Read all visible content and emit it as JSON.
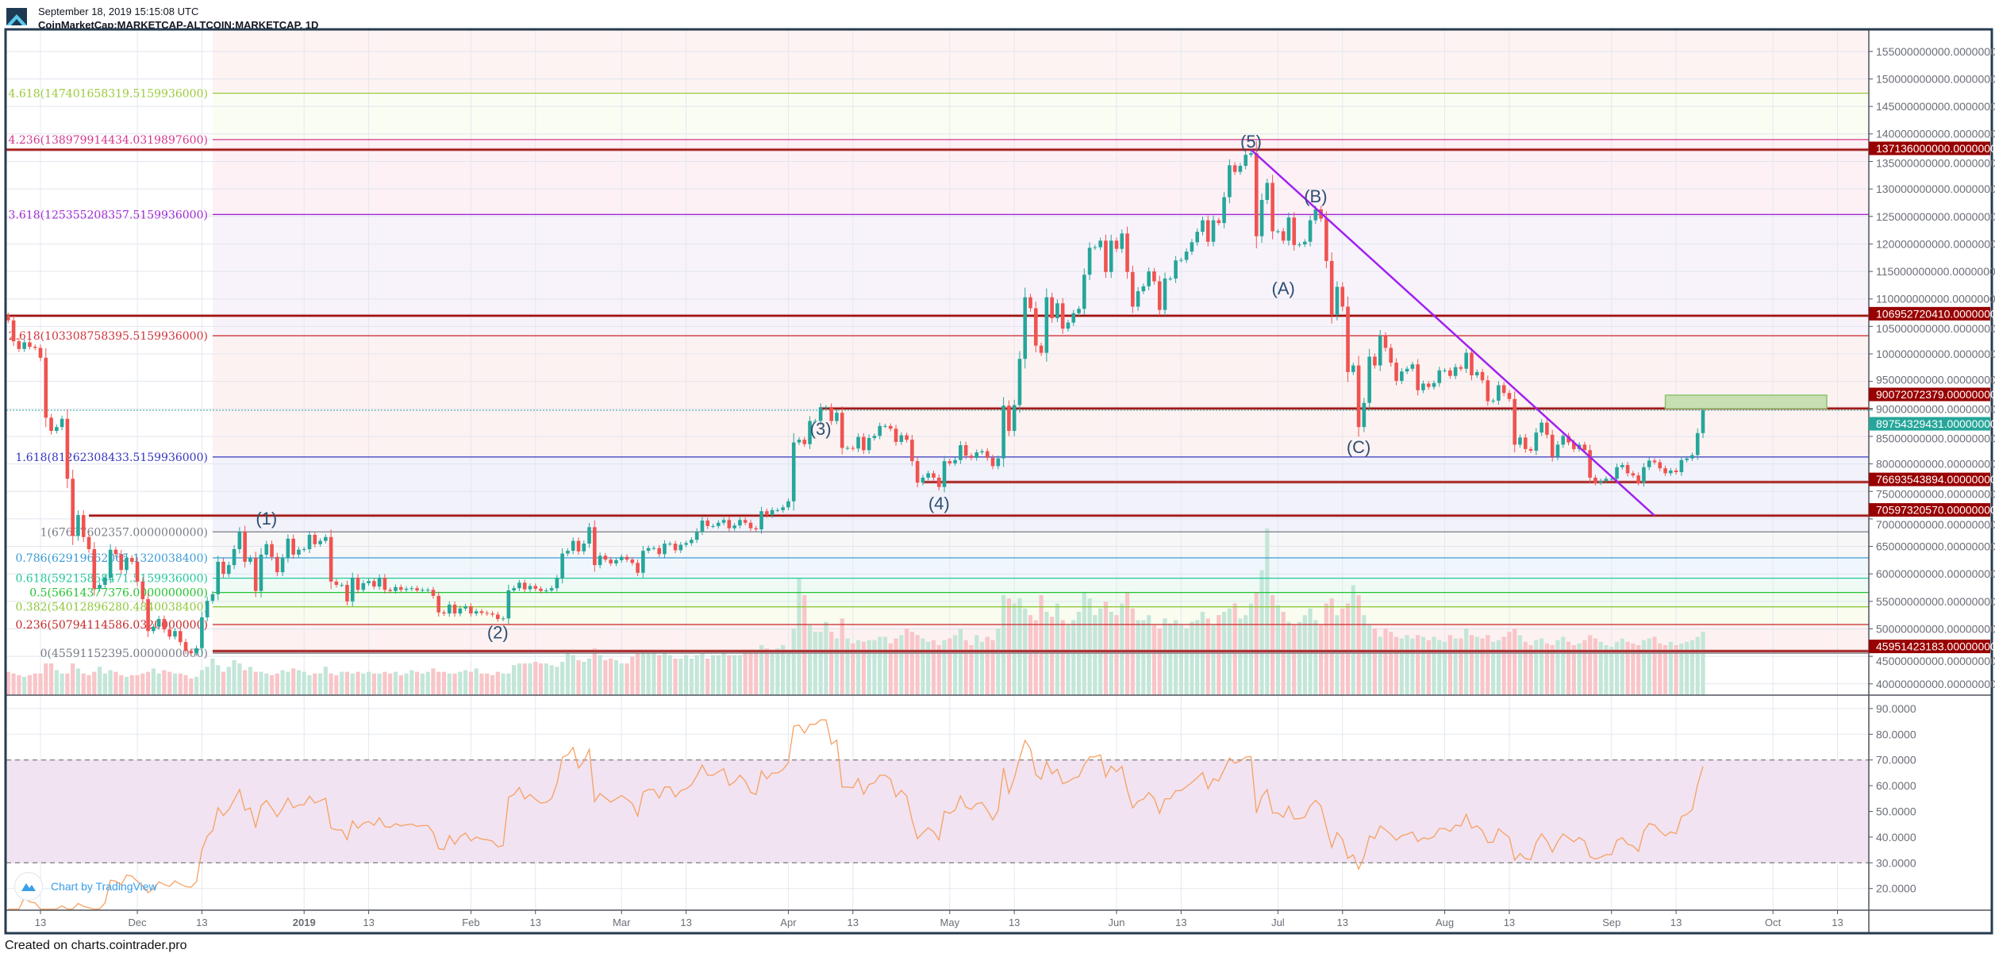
{
  "header": {
    "date": "September 18, 2019 15:15:08 UTC",
    "title": "CoinMarketCap:MARKETCAP-ALTCOIN:MARKETCAP, 1D"
  },
  "footer": {
    "created": "Created on charts.cointrader.pro"
  },
  "watermark": {
    "text": "Chart by TradingView",
    "icon": "tradingview-logo-icon"
  },
  "colors": {
    "up": "#26a69a",
    "down": "#ef5350",
    "up_volume": "#c3e6d8",
    "down_volume": "#f8c5c8",
    "level_line": "#9b0a0a",
    "level_label_bg": "#990000",
    "last_price_bg": "#26a69a",
    "trendline": "#a020f0",
    "rsi_line": "#f7a062",
    "rsi_band": "#f1e3f1",
    "wave_label": "#2c4f72",
    "target_box": "#c8dfb4",
    "target_box_border": "#8cc46c"
  },
  "chart_data": {
    "type": "candlestick",
    "symbol": "CoinMarketCap:MARKETCAP-ALTCOIN:MARKETCAP",
    "interval": "1D",
    "unit": "USD billions",
    "start_date": "2018-11-07",
    "first_open": 107.0,
    "closes": [
      106.1,
      102.3,
      100.9,
      102.1,
      101.3,
      101.1,
      99.3,
      88.4,
      86.0,
      86.7,
      88.2,
      77.3,
      66.9,
      70.7,
      66.7,
      64.5,
      57.3,
      58.0,
      59.3,
      64.4,
      63.6,
      60.7,
      62.9,
      62.2,
      58.6,
      55.4,
      49.6,
      50.4,
      51.8,
      49.9,
      48.6,
      49.6,
      47.6,
      46.0,
      45.6,
      46.5,
      52.1,
      55.1,
      56.3,
      62.2,
      60.0,
      61.6,
      64.5,
      67.7,
      62.2,
      62.9,
      56.9,
      63.5,
      65.4,
      63.1,
      60.3,
      62.9,
      66.4,
      63.5,
      64.4,
      64.5,
      67.1,
      65.4,
      66.0,
      66.7,
      58.6,
      58.0,
      58.0,
      55.0,
      59.3,
      57.1,
      58.3,
      58.7,
      57.7,
      59.3,
      57.1,
      56.9,
      57.6,
      57.1,
      57.3,
      57.4,
      57.0,
      57.1,
      57.1,
      56.0,
      53.0,
      52.8,
      54.4,
      52.8,
      53.7,
      54.1,
      52.8,
      53.2,
      52.9,
      52.8,
      52.6,
      51.8,
      51.9,
      57.0,
      57.4,
      58.4,
      57.2,
      57.8,
      57.3,
      56.9,
      57.0,
      57.4,
      59.2,
      63.7,
      64.2,
      66.0,
      64.1,
      65.5,
      68.5,
      61.6,
      63.3,
      62.6,
      61.9,
      62.5,
      63.1,
      62.6,
      62.0,
      60.2,
      64.2,
      64.7,
      64.7,
      63.6,
      65.5,
      65.5,
      64.3,
      65.3,
      65.6,
      66.2,
      67.7,
      69.7,
      68.7,
      68.7,
      69.3,
      69.8,
      68.3,
      68.8,
      69.8,
      69.3,
      68.3,
      68.1,
      71.4,
      70.7,
      71.6,
      71.6,
      72.1,
      73.2,
      83.9,
      84.4,
      83.6,
      87.8,
      87.8,
      90.3,
      90.3,
      87.8,
      89.3,
      82.9,
      82.9,
      82.8,
      84.9,
      82.5,
      84.7,
      85.1,
      86.9,
      86.9,
      86.4,
      84.0,
      85.2,
      84.4,
      80.5,
      76.6,
      77.5,
      78.3,
      77.5,
      75.8,
      80.5,
      80.1,
      80.7,
      83.4,
      81.5,
      81.1,
      82.1,
      82.3,
      81.1,
      79.6,
      81.0,
      90.6,
      86.0,
      90.7,
      99.1,
      110.3,
      108.3,
      101.5,
      100.2,
      110.3,
      106.5,
      109.2,
      104.6,
      105.7,
      107.4,
      108.2,
      114.4,
      119.3,
      119.4,
      120.6,
      114.9,
      120.6,
      119.1,
      121.9,
      114.9,
      108.6,
      111.4,
      112.3,
      115.0,
      113.2,
      108.0,
      113.7,
      113.7,
      117.0,
      117.1,
      118.6,
      120.3,
      122.2,
      124.3,
      120.4,
      124.3,
      123.8,
      128.5,
      134.3,
      133.1,
      134.2,
      136.2,
      136.5,
      121.4,
      128.0,
      131.1,
      122.3,
      122.3,
      120.6,
      124.8,
      119.8,
      119.9,
      120.4,
      124.3,
      126.3,
      124.6,
      116.9,
      107.1,
      112.2,
      108.6,
      96.7,
      97.9,
      86.7,
      91.1,
      99.5,
      97.9,
      103.3,
      101.1,
      98.4,
      95.1,
      96.8,
      97.3,
      98.1,
      93.4,
      94.6,
      94.0,
      94.7,
      97.0,
      97.0,
      96.0,
      97.6,
      97.3,
      100.2,
      96.1,
      96.7,
      95.2,
      91.4,
      91.5,
      94.3,
      92.9,
      91.8,
      83.5,
      84.8,
      82.7,
      82.4,
      85.7,
      87.5,
      85.3,
      81.3,
      83.5,
      85.1,
      83.9,
      82.7,
      83.5,
      82.5,
      77.5,
      76.6,
      76.9,
      77.3,
      77.3,
      79.4,
      79.8,
      78.3,
      77.9,
      76.6,
      79.4,
      80.6,
      80.3,
      79.2,
      78.3,
      78.8,
      78.5,
      80.7,
      81.0,
      81.6,
      85.6,
      89.754
    ],
    "volume_relative": [
      14,
      13,
      12,
      11,
      12,
      13,
      13,
      19,
      19,
      15,
      13,
      13,
      19,
      16,
      13,
      12,
      14,
      17,
      13,
      15,
      14,
      12,
      11,
      12,
      12,
      13,
      14,
      16,
      13,
      15,
      14,
      13,
      13,
      12,
      10,
      11,
      15,
      17,
      22,
      18,
      14,
      17,
      21,
      19,
      15,
      17,
      14,
      14,
      13,
      12,
      13,
      15,
      14,
      16,
      15,
      14,
      12,
      13,
      13,
      17,
      13,
      12,
      14,
      14,
      13,
      14,
      13,
      14,
      13,
      13,
      14,
      13,
      14,
      12,
      13,
      15,
      14,
      13,
      14,
      16,
      14,
      14,
      13,
      13,
      14,
      15,
      14,
      16,
      13,
      13,
      12,
      14,
      13,
      13,
      18,
      19,
      19,
      19,
      20,
      19,
      19,
      18,
      17,
      20,
      25,
      24,
      21,
      20,
      22,
      28,
      24,
      21,
      22,
      21,
      19,
      19,
      23,
      26,
      25,
      25,
      26,
      24,
      25,
      24,
      22,
      22,
      24,
      22,
      24,
      26,
      22,
      24,
      24,
      26,
      24,
      24,
      24,
      26,
      26,
      27,
      30,
      28,
      27,
      28,
      30,
      27,
      40,
      70,
      60,
      42,
      38,
      38,
      44,
      38,
      34,
      46,
      34,
      31,
      33,
      32,
      33,
      33,
      35,
      35,
      31,
      34,
      36,
      40,
      38,
      36,
      34,
      32,
      33,
      30,
      33,
      34,
      36,
      40,
      33,
      30,
      36,
      32,
      35,
      33,
      40,
      60,
      58,
      55,
      58,
      52,
      48,
      45,
      60,
      50,
      47,
      55,
      45,
      42,
      45,
      50,
      62,
      58,
      48,
      52,
      56,
      50,
      48,
      55,
      62,
      52,
      45,
      45,
      48,
      42,
      40,
      46,
      43,
      45,
      42,
      40,
      44,
      45,
      50,
      46,
      42,
      48,
      50,
      52,
      55,
      46,
      48,
      55,
      62,
      75,
      100,
      60,
      54,
      50,
      44,
      42,
      44,
      48,
      52,
      45,
      42,
      55,
      58,
      48,
      52,
      55,
      66,
      60,
      48,
      42,
      40,
      35,
      40,
      38,
      35,
      34,
      36,
      34,
      36,
      35,
      33,
      35,
      33,
      32,
      36,
      34,
      34,
      40,
      36,
      35,
      34,
      36,
      32,
      33,
      35,
      38,
      40,
      36,
      32,
      30,
      33,
      34,
      31,
      30,
      33,
      35,
      32,
      30,
      31,
      33,
      36,
      34,
      32,
      30,
      29,
      32,
      34,
      32,
      31,
      30,
      33,
      34,
      35,
      31,
      30,
      32,
      30,
      31,
      32,
      33,
      35,
      38
    ],
    "rsi_period": 14,
    "price_axis": {
      "ticks": [
        "155000000000.0000000000",
        "150000000000.0000000000",
        "145000000000.0000000000",
        "140000000000.0000000000",
        "135000000000.0000000000",
        "130000000000.0000000000",
        "125000000000.0000000000",
        "120000000000.0000000000",
        "115000000000.0000000000",
        "110000000000.0000000000",
        "105000000000.0000000000",
        "100000000000.0000000000",
        "95000000000.0000000000",
        "90000000000.0000000000",
        "85000000000.0000000000",
        "80000000000.0000000000",
        "75000000000.0000000000",
        "70000000000.0000000000",
        "65000000000.0000000000",
        "60000000000.0000000000",
        "55000000000.0000000000",
        "50000000000.0000000000",
        "45000000000.0000000000",
        "40000000000.0000000000"
      ]
    },
    "rsi_axis": {
      "ticks": [
        "90.0000",
        "80.0000",
        "70.0000",
        "60.0000",
        "50.0000",
        "40.0000",
        "30.0000",
        "20.0000"
      ],
      "band": [
        30,
        70
      ]
    },
    "time_axis": [
      {
        "label": "13",
        "date": "2018-11-13"
      },
      {
        "label": "Dec",
        "date": "2018-12-01"
      },
      {
        "label": "13",
        "date": "2018-12-13"
      },
      {
        "label": "2019",
        "date": "2019-01-01",
        "bold": true
      },
      {
        "label": "13",
        "date": "2019-01-13"
      },
      {
        "label": "Feb",
        "date": "2019-02-01"
      },
      {
        "label": "13",
        "date": "2019-02-13"
      },
      {
        "label": "Mar",
        "date": "2019-03-01"
      },
      {
        "label": "13",
        "date": "2019-03-13"
      },
      {
        "label": "Apr",
        "date": "2019-04-01"
      },
      {
        "label": "13",
        "date": "2019-04-13"
      },
      {
        "label": "May",
        "date": "2019-05-01"
      },
      {
        "label": "13",
        "date": "2019-05-13"
      },
      {
        "label": "Jun",
        "date": "2019-06-01"
      },
      {
        "label": "13",
        "date": "2019-06-13"
      },
      {
        "label": "Jul",
        "date": "2019-07-01"
      },
      {
        "label": "13",
        "date": "2019-07-13"
      },
      {
        "label": "Aug",
        "date": "2019-08-01"
      },
      {
        "label": "13",
        "date": "2019-08-13"
      },
      {
        "label": "Sep",
        "date": "2019-09-01"
      },
      {
        "label": "13",
        "date": "2019-09-13"
      },
      {
        "label": "Oct",
        "date": "2019-10-01"
      },
      {
        "label": "13",
        "date": "2019-10-13"
      }
    ],
    "fibonacci": {
      "start_date": "2018-12-15",
      "levels": [
        {
          "ratio": "0",
          "value": "45591152395.0000000000",
          "color": "#787b86",
          "band": "#ffffff"
        },
        {
          "ratio": "0.236",
          "value": "50794114586.0320000000",
          "color": "#c62828",
          "band": "#fdf1f1"
        },
        {
          "ratio": "0.382",
          "value": "54012896280.4840038400",
          "color": "#8fc63a",
          "band": "#f9fcef"
        },
        {
          "ratio": "0.5",
          "value": "56614377376.0000000000",
          "color": "#22c32e",
          "band": "#f1fbf0"
        },
        {
          "ratio": "0.618",
          "value": "59215858471.5159936000",
          "color": "#22c79a",
          "band": "#effaf5"
        },
        {
          "ratio": "0.786",
          "value": "62919662065.1320038400",
          "color": "#3a9ad6",
          "band": "#f0f7fc"
        },
        {
          "ratio": "1",
          "value": "67637602357.0000000000",
          "color": "#787b86",
          "band": "#f7f7f8"
        },
        {
          "ratio": "1.618",
          "value": "81262308433.5159936000",
          "color": "#3535c0",
          "band": "#f2f2fb"
        },
        {
          "ratio": "2.618",
          "value": "103308758395.5159936000",
          "color": "#d0343a",
          "band": "#fdf2f2"
        },
        {
          "ratio": "3.618",
          "value": "125355208357.5159936000",
          "color": "#a02ad6",
          "band": "#f8f3fb"
        },
        {
          "ratio": "4.236",
          "value": "138979914434.0319897600",
          "color": "#d4388e",
          "band": "#fdf1f6"
        },
        {
          "ratio": "4.618",
          "value": "147401658319.5159936000",
          "color": "#9acb3a",
          "band": "#fafdf2"
        }
      ],
      "top_band": "#fdf3f2"
    },
    "horizontal_levels": [
      {
        "value": "137136000000.0000000000",
        "start_date": "2018-11-05"
      },
      {
        "value": "106952720410.0000000000",
        "start_date": "2018-11-05"
      },
      {
        "value": "90072072379.0000000000",
        "start_date": "2019-04-07"
      },
      {
        "value": "76693543894.0000000000",
        "start_date": "2019-04-26"
      },
      {
        "value": "70597320570.0000000000",
        "start_date": "2018-11-22"
      },
      {
        "value": "45951423183.0000000000",
        "start_date": "2018-12-15"
      }
    ],
    "last_price": {
      "value": "89754329431.0000000000"
    },
    "trendline": {
      "from": {
        "date": "2019-06-26",
        "price": 137.14
      },
      "to": {
        "date": "2019-09-09",
        "price": 70.6
      }
    },
    "target_box": {
      "from_date": "2019-09-11",
      "to_date": "2019-10-11",
      "low": 90.07,
      "high": 92.5
    },
    "wave_labels": [
      {
        "text": "(1)",
        "date": "2018-12-25",
        "price": 70.1
      },
      {
        "text": "(2)",
        "date": "2019-02-06",
        "price": 49.4
      },
      {
        "text": "(3)",
        "date": "2019-04-07",
        "price": 86.4
      },
      {
        "text": "(4)",
        "date": "2019-04-29",
        "price": 72.9
      },
      {
        "text": "(5)",
        "date": "2019-06-26",
        "price": 138.7
      },
      {
        "text": "(A)",
        "date": "2019-07-02",
        "price": 112.0
      },
      {
        "text": "(B)",
        "date": "2019-07-08",
        "price": 128.7
      },
      {
        "text": "(C)",
        "date": "2019-07-16",
        "price": 83.1
      }
    ]
  }
}
